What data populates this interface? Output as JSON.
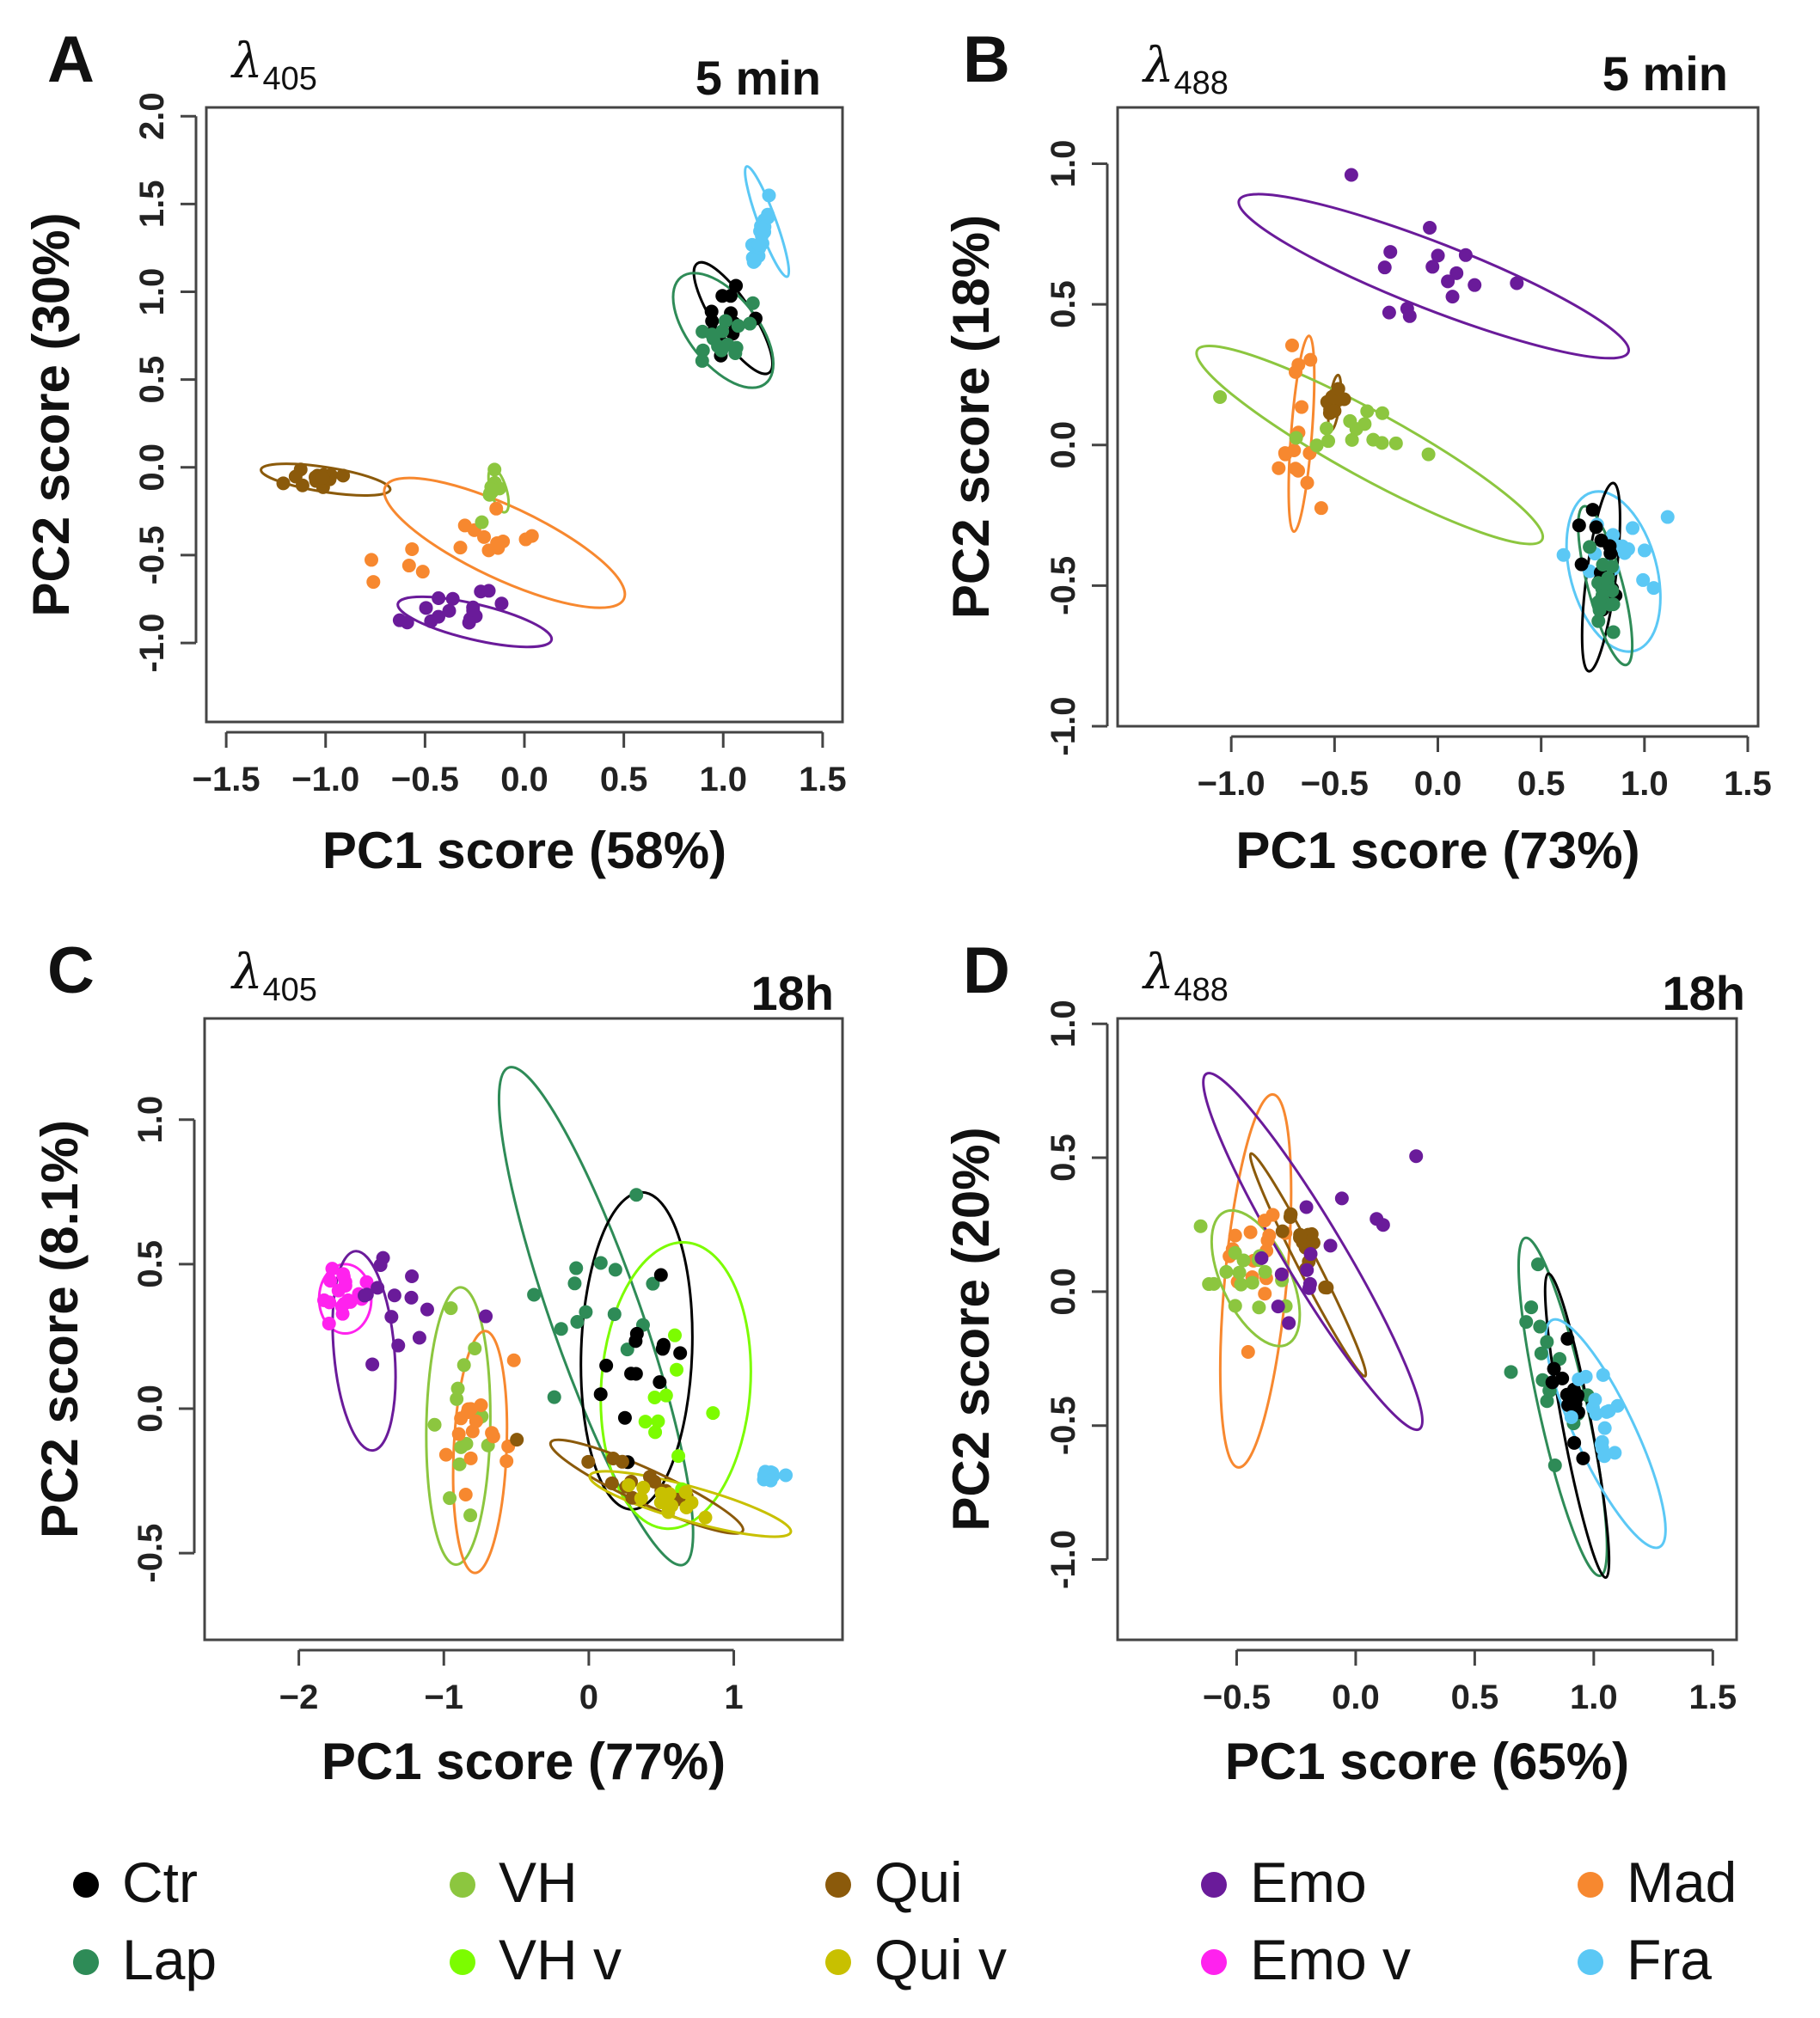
{
  "panels": [
    {
      "id": "A",
      "wavelength": "405",
      "time": "5 min",
      "xlabel": "PC1 score (58%)",
      "ylabel": "PC2 score (30%)",
      "xticks": [
        "−1.5",
        "−1.0",
        "−0.5",
        "0.0",
        "0.5",
        "1.0",
        "1.5"
      ],
      "yticks": [
        "-1.0",
        "-0.5",
        "0.0",
        "0.5",
        "1.0",
        "1.5",
        "2.0"
      ]
    },
    {
      "id": "B",
      "wavelength": "488",
      "time": "5 min",
      "xlabel": "PC1 score (73%)",
      "ylabel": "PC2 score (18%)",
      "xticks": [
        "−1.0",
        "−0.5",
        "0.0",
        "0.5",
        "1.0",
        "1.5"
      ],
      "yticks": [
        "-1.0",
        "-0.5",
        "0.0",
        "0.5",
        "1.0"
      ]
    },
    {
      "id": "C",
      "wavelength": "405",
      "time": "18h",
      "xlabel": "PC1 score (77%)",
      "ylabel": "PC2 score (8.1%)",
      "xticks": [
        "−2",
        "−1",
        "0",
        "1"
      ],
      "yticks": [
        "-0.5",
        "0.0",
        "0.5",
        "1.0"
      ]
    },
    {
      "id": "D",
      "wavelength": "488",
      "time": "18h",
      "xlabel": "PC1 score (65%)",
      "ylabel": "PC2 score (20%)",
      "xticks": [
        "−0.5",
        "0.0",
        "0.5",
        "1.0",
        "1.5"
      ],
      "yticks": [
        "-1.0",
        "-0.5",
        "0.0",
        "0.5",
        "1.0"
      ]
    }
  ],
  "legend": [
    {
      "label": "Ctr",
      "color": "#000000"
    },
    {
      "label": "VH",
      "color": "#8cc63f"
    },
    {
      "label": "Qui",
      "color": "#8b5a0b"
    },
    {
      "label": "Emo",
      "color": "#6a1b9a"
    },
    {
      "label": "Mad",
      "color": "#f7882f"
    },
    {
      "label": "Lap",
      "color": "#2e8b57"
    },
    {
      "label": "VH v",
      "color": "#7cfc00"
    },
    {
      "label": "Qui v",
      "color": "#c8c000"
    },
    {
      "label": "Emo v",
      "color": "#ff22ee"
    },
    {
      "label": "Fra",
      "color": "#5bc8f5"
    }
  ],
  "chart_data": [
    {
      "type": "scatter",
      "panel": "A",
      "title": "λ405 5 min",
      "xlabel": "PC1 score (58%)",
      "ylabel": "PC2 score (30%)",
      "xlim": [
        -1.6,
        1.6
      ],
      "ylim": [
        -1.45,
        2.05
      ],
      "legend": "bottom",
      "series": [
        {
          "name": "Fra",
          "cx": 1.2,
          "cy": 1.35,
          "sx": 0.035,
          "sy": 0.12,
          "r": 0.86,
          "n": 18,
          "ellipse": [
            1.22,
            1.4,
            0.33,
            0.045,
            -72
          ]
        },
        {
          "name": "Ctr",
          "cx": 1.03,
          "cy": 0.85,
          "sx": 0.09,
          "sy": 0.12,
          "r": 0.7,
          "n": 14,
          "ellipse": [
            1.05,
            0.85,
            0.36,
            0.1,
            -60
          ]
        },
        {
          "name": "Lap",
          "cx": 0.98,
          "cy": 0.72,
          "sx": 0.1,
          "sy": 0.13,
          "r": 0.6,
          "n": 16,
          "ellipse": [
            1.0,
            0.78,
            0.37,
            0.18,
            -55
          ]
        },
        {
          "name": "Qui",
          "cx": -1.05,
          "cy": -0.07,
          "sx": 0.1,
          "sy": 0.03,
          "r": 0.3,
          "n": 14,
          "ellipse": [
            -1.0,
            -0.07,
            0.33,
            0.07,
            -10
          ]
        },
        {
          "name": "Mad",
          "cx": -0.35,
          "cy": -0.43,
          "sx": 0.25,
          "sy": 0.13,
          "r": 0.65,
          "n": 16,
          "ellipse": [
            -0.1,
            -0.43,
            0.68,
            0.2,
            -28
          ]
        },
        {
          "name": "VH",
          "cx": -0.15,
          "cy": -0.13,
          "sx": 0.03,
          "sy": 0.07,
          "r": 0.5,
          "n": 10,
          "ellipse": [
            -0.13,
            -0.13,
            0.13,
            0.04,
            -75
          ]
        },
        {
          "name": "Emo",
          "cx": -0.35,
          "cy": -0.82,
          "sx": 0.14,
          "sy": 0.09,
          "r": 0.4,
          "n": 16,
          "ellipse": [
            -0.25,
            -0.88,
            0.4,
            0.1,
            -15
          ]
        }
      ]
    },
    {
      "type": "scatter",
      "panel": "B",
      "title": "λ488 5 min",
      "xlabel": "PC1 score (73%)",
      "ylabel": "PC2 score (18%)",
      "xlim": [
        -1.55,
        1.55
      ],
      "ylim": [
        -1.0,
        1.2
      ],
      "legend": "bottom",
      "series": [
        {
          "name": "Emo",
          "cx": -0.02,
          "cy": 0.58,
          "sx": 0.2,
          "sy": 0.12,
          "r": -0.4,
          "n": 15,
          "ellipse": [
            -0.02,
            0.6,
            0.98,
            0.12,
            -16
          ]
        },
        {
          "name": "Mad",
          "cx": -0.68,
          "cy": 0.0,
          "sx": 0.05,
          "sy": 0.16,
          "r": 0.2,
          "n": 15,
          "ellipse": [
            -0.66,
            0.04,
            0.35,
            0.05,
            84
          ]
        },
        {
          "name": "Qui",
          "cx": -0.5,
          "cy": 0.15,
          "sx": 0.02,
          "sy": 0.03,
          "r": 0.3,
          "n": 10,
          "ellipse": [
            -0.5,
            0.15,
            0.1,
            0.025,
            80
          ]
        },
        {
          "name": "VH",
          "cx": -0.4,
          "cy": 0.05,
          "sx": 0.2,
          "sy": 0.06,
          "r": -0.4,
          "n": 15,
          "ellipse": [
            -0.33,
            0.0,
            0.9,
            0.12,
            -22
          ]
        },
        {
          "name": "Fra",
          "cx": 0.82,
          "cy": -0.38,
          "sx": 0.14,
          "sy": 0.1,
          "r": 0.2,
          "n": 16,
          "ellipse": [
            0.85,
            -0.45,
            0.3,
            0.2,
            -70
          ]
        },
        {
          "name": "Ctr",
          "cx": 0.8,
          "cy": -0.45,
          "sx": 0.06,
          "sy": 0.1,
          "r": -0.3,
          "n": 14,
          "ellipse": [
            0.79,
            -0.47,
            0.34,
            0.07,
            80
          ]
        },
        {
          "name": "Lap",
          "cx": 0.8,
          "cy": -0.5,
          "sx": 0.06,
          "sy": 0.1,
          "r": -0.5,
          "n": 16,
          "ellipse": [
            0.81,
            -0.5,
            0.3,
            0.08,
            -70
          ]
        }
      ]
    },
    {
      "type": "scatter",
      "panel": "C",
      "title": "λ405 18h",
      "xlabel": "PC1 score (77%)",
      "ylabel": "PC2 score (8.1%)",
      "xlim": [
        -2.65,
        1.75
      ],
      "ylim": [
        -0.8,
        1.35
      ],
      "legend": "bottom",
      "series": [
        {
          "name": "Emo v",
          "cx": -1.7,
          "cy": 0.38,
          "sx": 0.09,
          "sy": 0.08,
          "r": 0.0,
          "n": 18,
          "ellipse": [
            -1.68,
            0.38,
            0.18,
            0.12,
            0
          ]
        },
        {
          "name": "Emo",
          "cx": -1.3,
          "cy": 0.3,
          "sx": 0.3,
          "sy": 0.14,
          "r": 0.0,
          "n": 14,
          "ellipse": [
            -1.55,
            0.2,
            0.35,
            0.2,
            -80
          ]
        },
        {
          "name": "VH",
          "cx": -0.9,
          "cy": 0.0,
          "sx": 0.12,
          "sy": 0.18,
          "r": 0.0,
          "n": 14,
          "ellipse": [
            -0.9,
            -0.06,
            0.48,
            0.22,
            88
          ]
        },
        {
          "name": "Mad",
          "cx": -0.75,
          "cy": -0.05,
          "sx": 0.12,
          "sy": 0.14,
          "r": 0.0,
          "n": 16,
          "ellipse": [
            -0.75,
            -0.15,
            0.42,
            0.18,
            85
          ]
        },
        {
          "name": "Lap",
          "cx": 0.05,
          "cy": 0.35,
          "sx": 0.3,
          "sy": 0.2,
          "r": 0.6,
          "n": 14,
          "ellipse": [
            0.05,
            0.32,
            1.05,
            0.22,
            -55
          ]
        },
        {
          "name": "Ctr",
          "cx": 0.4,
          "cy": 0.15,
          "sx": 0.18,
          "sy": 0.18,
          "r": 0.0,
          "n": 14,
          "ellipse": [
            0.33,
            0.2,
            0.55,
            0.38,
            86
          ]
        },
        {
          "name": "VH v",
          "cx": 0.55,
          "cy": 0.05,
          "sx": 0.15,
          "sy": 0.16,
          "r": 0.0,
          "n": 10,
          "ellipse": [
            0.6,
            0.08,
            0.5,
            0.5,
            82
          ]
        },
        {
          "name": "Qui",
          "cx": 0.3,
          "cy": -0.25,
          "sx": 0.3,
          "sy": 0.06,
          "r": -0.6,
          "n": 14,
          "ellipse": [
            0.4,
            -0.27,
            0.68,
            0.06,
            -13
          ]
        },
        {
          "name": "Qui v",
          "cx": 0.65,
          "cy": -0.33,
          "sx": 0.2,
          "sy": 0.03,
          "r": -0.4,
          "n": 12,
          "ellipse": [
            0.7,
            -0.33,
            0.7,
            0.06,
            -8
          ]
        },
        {
          "name": "Fra",
          "cx": 1.25,
          "cy": -0.23,
          "sx": 0.05,
          "sy": 0.015,
          "r": 0.0,
          "n": 10,
          "ellipse": null
        }
      ]
    },
    {
      "type": "scatter",
      "panel": "D",
      "title": "λ488 18h",
      "xlabel": "PC1 score (65%)",
      "ylabel": "PC2 score (20%)",
      "xlim": [
        -1.0,
        1.6
      ],
      "ylim": [
        -1.3,
        1.02
      ],
      "legend": "bottom",
      "series": [
        {
          "name": "Mad",
          "cx": -0.4,
          "cy": 0.15,
          "sx": 0.1,
          "sy": 0.13,
          "r": 0.0,
          "n": 16,
          "ellipse": [
            -0.42,
            0.04,
            0.7,
            0.13,
            84
          ]
        },
        {
          "name": "VH",
          "cx": -0.45,
          "cy": 0.05,
          "sx": 0.1,
          "sy": 0.1,
          "r": 0.0,
          "n": 16,
          "ellipse": [
            -0.42,
            0.05,
            0.28,
            0.14,
            -62
          ]
        },
        {
          "name": "Qui",
          "cx": -0.22,
          "cy": 0.15,
          "sx": 0.05,
          "sy": 0.08,
          "r": -0.6,
          "n": 14,
          "ellipse": [
            -0.2,
            0.1,
            0.48,
            0.04,
            -60
          ]
        },
        {
          "name": "Emo",
          "cx": -0.15,
          "cy": 0.15,
          "sx": 0.15,
          "sy": 0.12,
          "r": 0.6,
          "n": 14,
          "ellipse": [
            -0.18,
            0.15,
            0.8,
            0.12,
            -56
          ]
        },
        {
          "name": "Lap",
          "cx": 0.85,
          "cy": -0.35,
          "sx": 0.09,
          "sy": 0.2,
          "r": -0.6,
          "n": 16,
          "ellipse": [
            0.87,
            -0.43,
            0.65,
            0.1,
            -76
          ]
        },
        {
          "name": "Ctr",
          "cx": 0.9,
          "cy": -0.4,
          "sx": 0.05,
          "sy": 0.13,
          "r": -0.5,
          "n": 14,
          "ellipse": [
            0.93,
            -0.5,
            0.58,
            0.06,
            -78
          ]
        },
        {
          "name": "Fra",
          "cx": 1.03,
          "cy": -0.45,
          "sx": 0.08,
          "sy": 0.12,
          "r": -0.5,
          "n": 16,
          "ellipse": [
            1.05,
            -0.53,
            0.48,
            0.12,
            -62
          ]
        }
      ]
    }
  ]
}
